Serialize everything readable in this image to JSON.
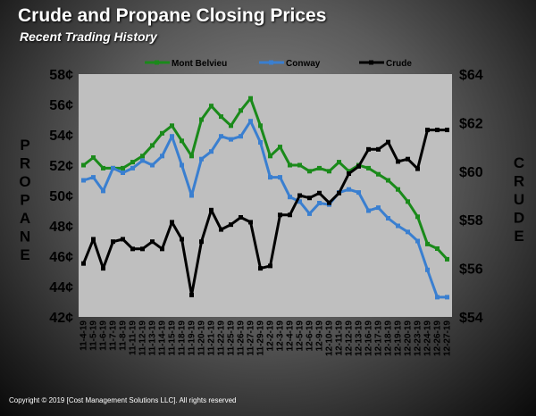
{
  "title": "Crude and Propane Closing Prices",
  "subtitle": "Recent Trading History",
  "copyright": "Copyright  © 2019  [Cost Management  Solutions LLC].   All rights  reserved",
  "chart_data": {
    "type": "line",
    "x": [
      "11-4-19",
      "11-5-19",
      "11-6-19",
      "11-7-19",
      "11-8-19",
      "11-11-19",
      "11-12-19",
      "11-13-19",
      "11-14-19",
      "11-15-19",
      "11-18-19",
      "11-19-19",
      "11-20-19",
      "11-21-19",
      "11-22-19",
      "11-25-19",
      "11-26-19",
      "11-27-19",
      "11-29-19",
      "12-2-19",
      "12-3-19",
      "12-4-19",
      "12-5-19",
      "12-6-19",
      "12-9-19",
      "12-10-19",
      "12-11-19",
      "12-12-19",
      "12-13-19",
      "12-16-19",
      "12-17-19",
      "12-18-19",
      "12-19-19",
      "12-20-19",
      "12-23-19",
      "12-24-19",
      "12-26-19",
      "12-27-19"
    ],
    "series": [
      {
        "name": "Mont Belvieu",
        "axis": "left",
        "color": "#1a8a1a",
        "values": [
          52.0,
          52.5,
          51.8,
          51.8,
          51.8,
          52.2,
          52.6,
          53.3,
          54.1,
          54.6,
          53.6,
          52.6,
          55.0,
          55.9,
          55.2,
          54.6,
          55.6,
          56.4,
          54.6,
          52.6,
          53.2,
          52.0,
          52.0,
          51.6,
          51.8,
          51.6,
          52.2,
          51.6,
          52.0,
          51.8,
          51.4,
          51.0,
          50.4,
          49.6,
          48.6,
          46.8,
          46.5,
          45.8
        ]
      },
      {
        "name": "Conway",
        "axis": "left",
        "color": "#3a7fd0",
        "values": [
          51.0,
          51.2,
          50.3,
          51.8,
          51.5,
          51.8,
          52.3,
          52.0,
          52.6,
          53.9,
          52.0,
          50.0,
          52.4,
          52.9,
          53.9,
          53.7,
          53.9,
          54.9,
          53.5,
          51.2,
          51.2,
          49.9,
          49.6,
          48.8,
          49.5,
          49.4,
          50.2,
          50.4,
          50.2,
          49.0,
          49.2,
          48.5,
          48.0,
          47.6,
          47.0,
          45.1,
          43.3,
          43.3
        ]
      },
      {
        "name": "Crude",
        "axis": "right",
        "color": "#000000",
        "values": [
          56.2,
          57.2,
          56.0,
          57.1,
          57.2,
          56.8,
          56.8,
          57.1,
          56.8,
          57.9,
          57.2,
          54.9,
          57.1,
          58.4,
          57.6,
          57.8,
          58.1,
          57.9,
          56.0,
          56.1,
          58.2,
          58.2,
          59.0,
          58.9,
          59.1,
          58.7,
          59.1,
          59.9,
          60.2,
          60.9,
          60.9,
          61.2,
          60.4,
          60.5,
          60.1,
          61.7,
          61.7,
          61.7
        ]
      }
    ],
    "left_axis": {
      "label": "PROPANE",
      "min": 42,
      "max": 58,
      "step": 2,
      "suffix": "¢"
    },
    "right_axis": {
      "label": "CRUDE",
      "min": 54,
      "max": 64,
      "step": 2,
      "prefix": "$"
    },
    "legend": "top",
    "grid": false
  }
}
